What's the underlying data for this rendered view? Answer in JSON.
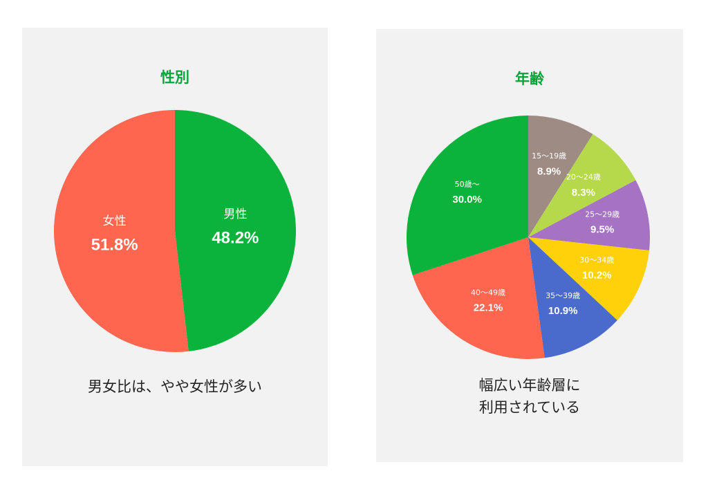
{
  "chart_data": [
    {
      "type": "pie",
      "title": "性別",
      "categories": [
        "男性",
        "女性"
      ],
      "values": [
        48.2,
        51.8
      ],
      "labels": [
        "48.2%",
        "51.8%"
      ],
      "colors": [
        "#0bb23b",
        "#ff6650"
      ],
      "caption": "男女比は、やや女性が多い"
    },
    {
      "type": "pie",
      "title": "年齢",
      "categories": [
        "15〜19歳",
        "20〜24歳",
        "25〜29歳",
        "30〜34歳",
        "35〜39歳",
        "40〜49歳",
        "50歳〜"
      ],
      "values": [
        8.9,
        8.3,
        9.5,
        10.2,
        10.9,
        22.1,
        30.0
      ],
      "labels": [
        "8.9%",
        "8.3%",
        "9.5%",
        "10.2%",
        "10.9%",
        "22.1%",
        "30.0%"
      ],
      "colors": [
        "#9e8b84",
        "#b5d94a",
        "#a673c4",
        "#ffd10a",
        "#4a6bcc",
        "#ff6650",
        "#0bb23b"
      ],
      "caption": [
        "幅広い年齢層に",
        "利用されている"
      ]
    }
  ]
}
